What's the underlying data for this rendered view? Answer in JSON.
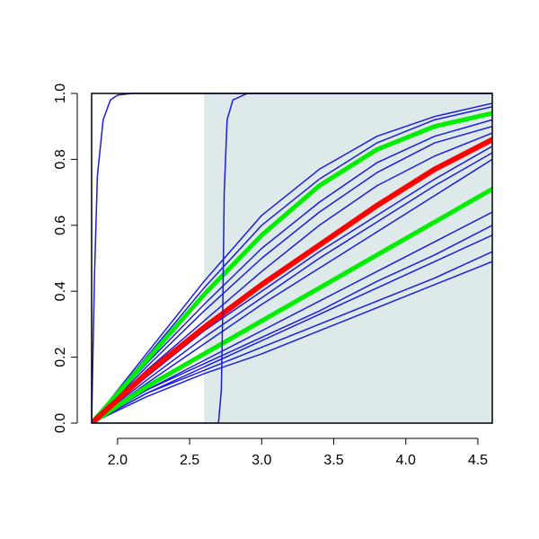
{
  "chart_data": {
    "type": "line",
    "x": [
      1.82,
      2.2,
      2.6,
      3.0,
      3.4,
      3.8,
      4.2,
      4.6
    ],
    "xlim": [
      1.82,
      4.6
    ],
    "ylim": [
      0,
      1
    ],
    "xticks": [
      {
        "value": 2,
        "label": "2.0"
      },
      2.5,
      {
        "value": 3,
        "label": "3.0"
      },
      3.5,
      {
        "value": 4,
        "label": "4.0"
      },
      4.5
    ],
    "yticks": [
      {
        "value": 0,
        "label": "0.0"
      },
      0.2,
      0.4,
      0.6,
      0.8,
      {
        "value": 1,
        "label": "1.0"
      }
    ],
    "shaded_region": {
      "xlim": [
        2.6,
        4.6
      ],
      "color": "#deeaea"
    },
    "series": [
      {
        "color": "#1c1cdc",
        "line_width": 1.5,
        "values": [
          0,
          0.21,
          0.43,
          0.63,
          0.77,
          0.87,
          0.93,
          0.97
        ]
      },
      {
        "color": "#1c1cdc",
        "line_width": 1.5,
        "values": [
          0,
          0.2,
          0.41,
          0.6,
          0.74,
          0.85,
          0.92,
          0.96
        ]
      },
      {
        "color": "#1c1cdc",
        "line_width": 1.5,
        "values": [
          0,
          0.18,
          0.36,
          0.53,
          0.67,
          0.79,
          0.87,
          0.92
        ]
      },
      {
        "color": "#1c1cdc",
        "line_width": 1.5,
        "values": [
          0,
          0.17,
          0.34,
          0.5,
          0.64,
          0.76,
          0.85,
          0.9
        ]
      },
      {
        "color": "#1c1cdc",
        "line_width": 1.5,
        "values": [
          0,
          0.16,
          0.31,
          0.46,
          0.6,
          0.72,
          0.81,
          0.88
        ]
      },
      {
        "color": "#1c1cdc",
        "line_width": 1.5,
        "values": [
          0,
          0.14,
          0.28,
          0.4,
          0.52,
          0.63,
          0.74,
          0.84
        ]
      },
      {
        "color": "#1c1cdc",
        "line_width": 1.5,
        "values": [
          0,
          0.13,
          0.26,
          0.38,
          0.5,
          0.61,
          0.72,
          0.82
        ]
      },
      {
        "color": "#1c1cdc",
        "line_width": 1.5,
        "values": [
          0,
          0.12,
          0.24,
          0.36,
          0.47,
          0.58,
          0.69,
          0.8
        ]
      },
      {
        "color": "#1c1cdc",
        "line_width": 1.5,
        "values": [
          0,
          0.1,
          0.19,
          0.28,
          0.37,
          0.46,
          0.55,
          0.64
        ]
      },
      {
        "color": "#1c1cdc",
        "line_width": 1.5,
        "values": [
          0,
          0.1,
          0.18,
          0.26,
          0.34,
          0.43,
          0.51,
          0.6
        ]
      },
      {
        "color": "#1c1cdc",
        "line_width": 1.5,
        "values": [
          0,
          0.09,
          0.17,
          0.25,
          0.33,
          0.41,
          0.49,
          0.57
        ]
      },
      {
        "color": "#1c1cdc",
        "line_width": 1.5,
        "values": [
          0,
          0.09,
          0.16,
          0.23,
          0.3,
          0.37,
          0.44,
          0.52
        ]
      },
      {
        "color": "#1c1cdc",
        "line_width": 1.5,
        "values": [
          0,
          0.08,
          0.15,
          0.21,
          0.28,
          0.35,
          0.42,
          0.49
        ]
      },
      {
        "color": "#00ee00",
        "line_width": 5,
        "values": [
          0,
          0.19,
          0.39,
          0.57,
          0.72,
          0.83,
          0.9,
          0.94
        ]
      },
      {
        "color": "#00ee00",
        "line_width": 5,
        "values": [
          0,
          0.11,
          0.21,
          0.31,
          0.41,
          0.51,
          0.61,
          0.71
        ]
      },
      {
        "color": "#ff0000",
        "line_width": 6,
        "values": [
          0,
          0.15,
          0.29,
          0.42,
          0.54,
          0.66,
          0.77,
          0.86
        ]
      },
      {
        "color": "#1c1cdc",
        "line_width": 1.5,
        "x": [
          1.82,
          1.84,
          1.86,
          1.9,
          1.95,
          2.0,
          2.1,
          4.6
        ],
        "values": [
          0,
          0.45,
          0.75,
          0.92,
          0.98,
          0.995,
          1,
          1
        ]
      },
      {
        "color": "#1c1cdc",
        "line_width": 1.5,
        "x": [
          1.82,
          2.7,
          2.72,
          2.73,
          2.74,
          2.76,
          2.8,
          2.9,
          4.6
        ],
        "values": [
          0,
          0,
          0.1,
          0.35,
          0.7,
          0.92,
          0.98,
          1,
          1
        ]
      }
    ]
  }
}
